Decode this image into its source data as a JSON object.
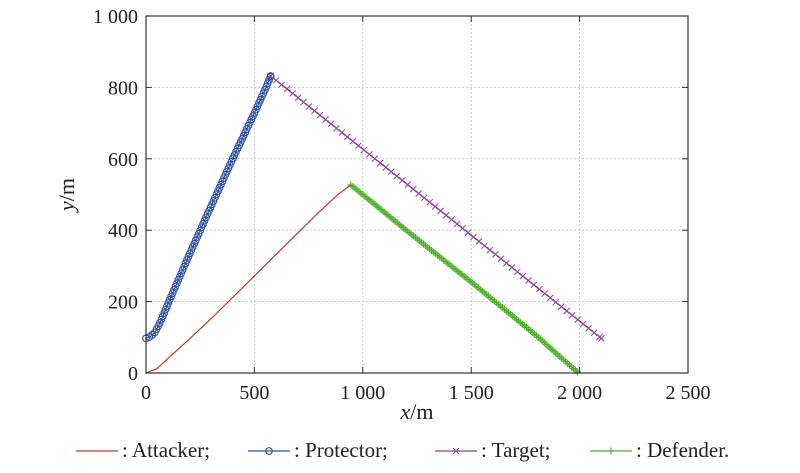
{
  "chart_data": {
    "type": "line",
    "xlabel_var": "x",
    "xlabel_unit": "/m",
    "ylabel_var": "y",
    "ylabel_unit": "/m",
    "xlim": [
      0,
      2500
    ],
    "ylim": [
      0,
      1000
    ],
    "x_ticks": [
      0,
      500,
      1000,
      1500,
      2000,
      2500
    ],
    "x_tick_labels": [
      "0",
      "500",
      "1 000",
      "1 500",
      "2 000",
      "2 500"
    ],
    "y_ticks": [
      0,
      200,
      400,
      600,
      800,
      1000
    ],
    "y_tick_labels": [
      "0",
      "200",
      "400",
      "600",
      "800",
      "1 000"
    ],
    "grid": true,
    "legend_position": "bottom",
    "series": [
      {
        "name": ": Attacker;",
        "color": "#c0392b",
        "marker": "none",
        "points": [
          [
            0,
            0
          ],
          [
            50,
            12
          ],
          [
            100,
            40
          ],
          [
            200,
            95
          ],
          [
            300,
            152
          ],
          [
            400,
            212
          ],
          [
            500,
            272
          ],
          [
            600,
            332
          ],
          [
            700,
            392
          ],
          [
            800,
            452
          ],
          [
            880,
            497
          ],
          [
            945,
            527
          ]
        ]
      },
      {
        "name": ": Protector;",
        "color": "#2e4f9e",
        "marker": "circle",
        "points": [
          [
            0,
            97
          ],
          [
            20,
            102
          ],
          [
            40,
            113
          ],
          [
            60,
            135
          ],
          [
            80,
            162
          ],
          [
            100,
            192
          ],
          [
            150,
            262
          ],
          [
            200,
            332
          ],
          [
            300,
            467
          ],
          [
            400,
            600
          ],
          [
            500,
            728
          ],
          [
            550,
            795
          ],
          [
            575,
            832
          ]
        ]
      },
      {
        "name": ": Target;",
        "color": "#8e3f9e",
        "marker": "x",
        "points": [
          [
            575,
            832
          ],
          [
            2100,
            97
          ]
        ]
      },
      {
        "name": ": Defender.",
        "color": "#4caf2a",
        "marker": "plus",
        "points": [
          [
            945,
            527
          ],
          [
            1200,
            400
          ],
          [
            1500,
            255
          ],
          [
            1800,
            105
          ],
          [
            1920,
            40
          ],
          [
            1990,
            3
          ]
        ]
      }
    ]
  }
}
